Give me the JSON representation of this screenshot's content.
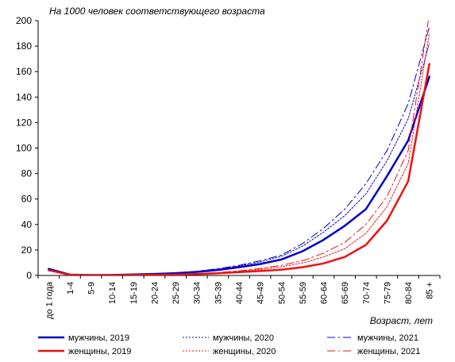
{
  "chart_data": {
    "type": "line",
    "ylabel": "На 1000 человек соответствующего возраста",
    "xlabel": "Возраст, лет",
    "categories": [
      "до 1 года",
      "1-4",
      "5-9",
      "10-14",
      "15-19",
      "20-24",
      "25-29",
      "30-34",
      "35-39",
      "40-44",
      "45-49",
      "50-54",
      "55-59",
      "60-64",
      "65-69",
      "70-74",
      "75-79",
      "80-84",
      "85 +"
    ],
    "ylim": [
      0,
      200
    ],
    "yticks": [
      "0",
      "20",
      "40",
      "60",
      "80",
      "100",
      "120",
      "140",
      "160",
      "180",
      "200"
    ],
    "grid": false,
    "legend_position": "bottom",
    "series": [
      {
        "name": "мужчины, 2019",
        "color": "#0000CC",
        "style": "solid",
        "width": "thick",
        "values": [
          5.2,
          0.6,
          0.3,
          0.4,
          0.8,
          1.2,
          1.8,
          2.8,
          4.3,
          6.5,
          9.0,
          12.5,
          19.0,
          28.0,
          39.0,
          52.0,
          78.0,
          106.0,
          156.0
        ]
      },
      {
        "name": "мужчины, 2020",
        "color": "#0000CC",
        "style": "dotted",
        "width": "thin",
        "values": [
          5.0,
          0.6,
          0.3,
          0.4,
          0.8,
          1.3,
          2.0,
          3.2,
          5.0,
          7.5,
          10.5,
          15.0,
          23.0,
          34.0,
          47.0,
          64.0,
          90.0,
          123.0,
          182.0
        ]
      },
      {
        "name": "мужчины, 2021",
        "color": "#0000CC",
        "style": "dashdot",
        "width": "thin",
        "values": [
          4.9,
          0.6,
          0.3,
          0.4,
          0.8,
          1.3,
          2.0,
          3.3,
          5.3,
          8.0,
          11.5,
          16.0,
          25.0,
          37.0,
          52.0,
          72.0,
          98.0,
          135.0,
          195.0
        ]
      },
      {
        "name": "женщины, 2019",
        "color": "#EE1111",
        "style": "solid",
        "width": "thick",
        "values": [
          4.2,
          0.5,
          0.2,
          0.3,
          0.4,
          0.5,
          0.7,
          1.1,
          1.7,
          2.6,
          3.5,
          4.5,
          6.5,
          9.5,
          14.5,
          24.0,
          43.0,
          74.0,
          166.0
        ]
      },
      {
        "name": "женщины, 2020",
        "color": "#EE1111",
        "style": "dotted",
        "width": "thin",
        "values": [
          4.0,
          0.5,
          0.2,
          0.3,
          0.4,
          0.5,
          0.8,
          1.3,
          2.1,
          3.3,
          4.8,
          6.8,
          9.8,
          14.5,
          21.0,
          33.0,
          54.0,
          88.0,
          190.0
        ]
      },
      {
        "name": "женщины, 2021",
        "color": "#EE1111",
        "style": "dashdot",
        "width": "thin",
        "values": [
          3.9,
          0.5,
          0.2,
          0.3,
          0.4,
          0.5,
          0.8,
          1.4,
          2.3,
          3.7,
          5.5,
          8.0,
          11.5,
          17.5,
          26.0,
          40.0,
          62.0,
          98.0,
          205.0
        ]
      }
    ]
  }
}
